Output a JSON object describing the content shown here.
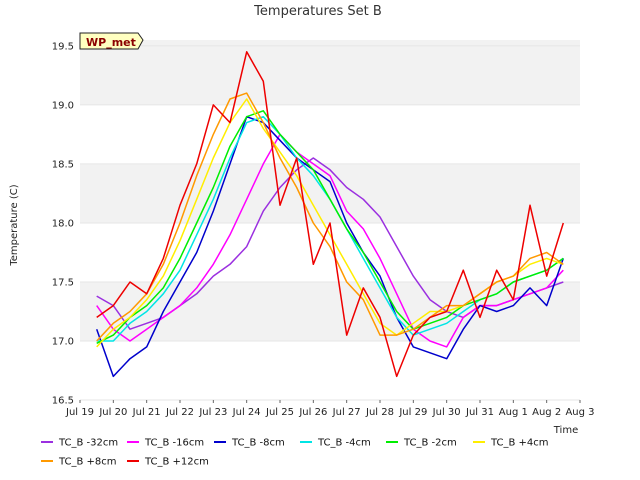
{
  "chart_data": {
    "type": "line",
    "title": "Temperatures Set B",
    "xlabel": "Time",
    "ylabel": "Temperature (C)",
    "badge": "WP_met",
    "x_ticks": [
      "Jul 19",
      "Jul 20",
      "Jul 21",
      "Jul 22",
      "Jul 23",
      "Jul 24",
      "Jul 25",
      "Jul 26",
      "Jul 27",
      "Jul 28",
      "Jul 29",
      "Jul 30",
      "Jul 31",
      "Aug 1",
      "Aug 2",
      "Aug 3"
    ],
    "y_ticks": [
      "16.5",
      "17.0",
      "17.5",
      "18.0",
      "18.5",
      "19.0",
      "19.5"
    ],
    "ylim": [
      16.5,
      19.55
    ],
    "xlim": [
      "Jul 19",
      "Aug 3"
    ],
    "grid": "horizontal bands",
    "legend_position": "bottom",
    "x": [
      "Jul 19 12:00",
      "Jul 20 00:00",
      "Jul 20 12:00",
      "Jul 21 00:00",
      "Jul 21 12:00",
      "Jul 22 00:00",
      "Jul 22 12:00",
      "Jul 23 00:00",
      "Jul 23 12:00",
      "Jul 24 00:00",
      "Jul 24 12:00",
      "Jul 25 00:00",
      "Jul 25 12:00",
      "Jul 26 00:00",
      "Jul 26 12:00",
      "Jul 27 00:00",
      "Jul 27 12:00",
      "Jul 28 00:00",
      "Jul 28 12:00",
      "Jul 29 00:00",
      "Jul 29 12:00",
      "Jul 30 00:00",
      "Jul 30 12:00",
      "Jul 31 00:00",
      "Jul 31 12:00",
      "Aug 1 00:00",
      "Aug 1 12:00",
      "Aug 2 00:00",
      "Aug 2 12:00"
    ],
    "series": [
      {
        "name": "TC_B -32cm",
        "color": "#9b30e0",
        "values": [
          17.38,
          17.3,
          17.1,
          17.15,
          17.2,
          17.3,
          17.4,
          17.55,
          17.65,
          17.8,
          18.1,
          18.3,
          18.45,
          18.55,
          18.45,
          18.3,
          18.2,
          18.05,
          17.8,
          17.55,
          17.35,
          17.25,
          17.2,
          17.3,
          17.3,
          17.35,
          17.4,
          17.45,
          17.5
        ]
      },
      {
        "name": "TC_B -16cm",
        "color": "#ff00ff",
        "values": [
          17.3,
          17.1,
          17.0,
          17.1,
          17.2,
          17.3,
          17.45,
          17.65,
          17.9,
          18.2,
          18.5,
          18.75,
          18.6,
          18.5,
          18.4,
          18.1,
          17.95,
          17.7,
          17.4,
          17.1,
          17.0,
          16.95,
          17.2,
          17.3,
          17.3,
          17.35,
          17.4,
          17.45,
          17.6
        ]
      },
      {
        "name": "TC_B -8cm",
        "color": "#0000cc",
        "values": [
          17.1,
          16.7,
          16.85,
          16.95,
          17.25,
          17.5,
          17.75,
          18.1,
          18.5,
          18.9,
          18.85,
          18.7,
          18.55,
          18.45,
          18.35,
          18.0,
          17.75,
          17.55,
          17.2,
          16.95,
          16.9,
          16.85,
          17.1,
          17.3,
          17.25,
          17.3,
          17.45,
          17.3,
          17.7
        ]
      },
      {
        "name": "TC_B -4cm",
        "color": "#00e5e5",
        "values": [
          17.0,
          17.0,
          17.15,
          17.25,
          17.4,
          17.6,
          17.9,
          18.2,
          18.55,
          18.85,
          18.9,
          18.75,
          18.55,
          18.4,
          18.2,
          17.95,
          17.7,
          17.45,
          17.2,
          17.05,
          17.1,
          17.15,
          17.25,
          17.35,
          17.4,
          17.5,
          17.55,
          17.6,
          17.7
        ]
      },
      {
        "name": "TC_B -2cm",
        "color": "#00ee00",
        "values": [
          16.98,
          17.05,
          17.2,
          17.3,
          17.45,
          17.7,
          18.0,
          18.3,
          18.65,
          18.9,
          18.95,
          18.75,
          18.6,
          18.45,
          18.2,
          17.95,
          17.75,
          17.5,
          17.25,
          17.1,
          17.15,
          17.2,
          17.3,
          17.35,
          17.4,
          17.5,
          17.55,
          17.6,
          17.7
        ]
      },
      {
        "name": "TC_B +4cm",
        "color": "#ffee00",
        "values": [
          16.95,
          17.1,
          17.2,
          17.35,
          17.55,
          17.85,
          18.2,
          18.55,
          18.85,
          19.05,
          18.8,
          18.6,
          18.4,
          18.15,
          17.9,
          17.65,
          17.4,
          17.15,
          17.05,
          17.15,
          17.25,
          17.25,
          17.3,
          17.4,
          17.5,
          17.55,
          17.65,
          17.7,
          17.65
        ]
      },
      {
        "name": "TC_B +8cm",
        "color": "#ff9900",
        "values": [
          17.0,
          17.15,
          17.25,
          17.4,
          17.65,
          18.0,
          18.4,
          18.75,
          19.05,
          19.1,
          18.85,
          18.55,
          18.3,
          18.0,
          17.8,
          17.5,
          17.35,
          17.05,
          17.05,
          17.1,
          17.2,
          17.3,
          17.3,
          17.4,
          17.5,
          17.55,
          17.7,
          17.75,
          17.65
        ]
      },
      {
        "name": "TC_B +12cm",
        "color": "#ee0000",
        "values": [
          17.2,
          17.3,
          17.5,
          17.4,
          17.7,
          18.15,
          18.5,
          19.0,
          18.85,
          19.45,
          19.2,
          18.15,
          18.55,
          17.65,
          18.0,
          17.05,
          17.45,
          17.2,
          16.7,
          17.05,
          17.2,
          17.25,
          17.6,
          17.2,
          17.6,
          17.35,
          18.15,
          17.55,
          18.0
        ]
      }
    ]
  }
}
